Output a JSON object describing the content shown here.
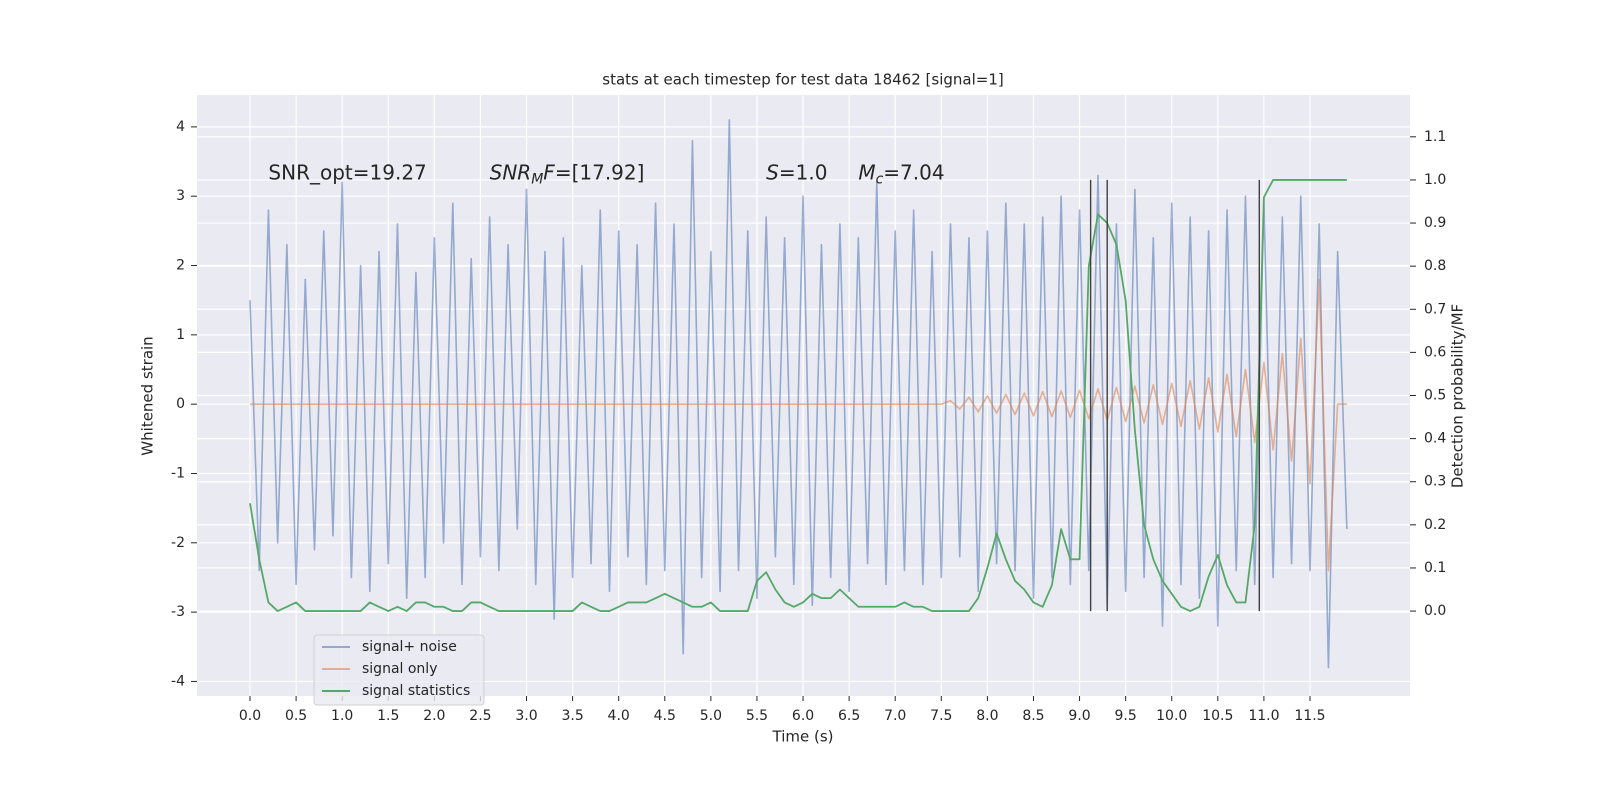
{
  "chart_data": {
    "type": "line",
    "title": "stats at each timestep for test data 18462 [signal=1]",
    "xlabel": "Time (s)",
    "ylabel": "Whitened strain",
    "y2label": "Detection probability/MF",
    "x": [
      0.0,
      0.1,
      0.2,
      0.3,
      0.4,
      0.5,
      0.6,
      0.7,
      0.8,
      0.9,
      1.0,
      1.1,
      1.2,
      1.3,
      1.4,
      1.5,
      1.6,
      1.7,
      1.8,
      1.9,
      2.0,
      2.1,
      2.2,
      2.3,
      2.4,
      2.5,
      2.6,
      2.7,
      2.8,
      2.9,
      3.0,
      3.1,
      3.2,
      3.3,
      3.4,
      3.5,
      3.6,
      3.7,
      3.8,
      3.9,
      4.0,
      4.1,
      4.2,
      4.3,
      4.4,
      4.5,
      4.6,
      4.7,
      4.8,
      4.9,
      5.0,
      5.1,
      5.2,
      5.3,
      5.4,
      5.5,
      5.6,
      5.7,
      5.8,
      5.9,
      6.0,
      6.1,
      6.2,
      6.3,
      6.4,
      6.5,
      6.6,
      6.7,
      6.8,
      6.9,
      7.0,
      7.1,
      7.2,
      7.3,
      7.4,
      7.5,
      7.6,
      7.7,
      7.8,
      7.9,
      8.0,
      8.1,
      8.2,
      8.3,
      8.4,
      8.5,
      8.6,
      8.7,
      8.8,
      8.9,
      9.0,
      9.1,
      9.2,
      9.3,
      9.4,
      9.5,
      9.6,
      9.7,
      9.8,
      9.9,
      10.0,
      10.1,
      10.2,
      10.3,
      10.4,
      10.5,
      10.6,
      10.7,
      10.8,
      10.9,
      11.0,
      11.1,
      11.2,
      11.3,
      11.4,
      11.5,
      11.6,
      11.7,
      11.8,
      11.9
    ],
    "series": [
      {
        "name": "signal+ noise",
        "color": "#4c72b0",
        "opacity": 0.55,
        "values": [
          1.5,
          -2.4,
          2.8,
          -2.0,
          2.3,
          -2.6,
          1.8,
          -2.1,
          2.5,
          -1.9,
          3.2,
          -2.5,
          2.0,
          -2.7,
          2.2,
          -2.3,
          2.6,
          -2.8,
          1.9,
          -2.5,
          2.4,
          -2.0,
          2.9,
          -2.6,
          2.1,
          -2.2,
          2.7,
          -2.4,
          2.3,
          -1.8,
          3.1,
          -2.6,
          2.2,
          -3.1,
          2.4,
          -2.5,
          2.0,
          -2.3,
          2.8,
          -2.7,
          2.5,
          -2.2,
          2.3,
          -2.6,
          2.9,
          -2.4,
          2.6,
          -3.6,
          3.8,
          -2.5,
          2.2,
          -2.7,
          4.1,
          -2.4,
          2.5,
          -2.8,
          2.7,
          -2.2,
          2.4,
          -2.6,
          3.0,
          -2.9,
          2.3,
          -2.5,
          2.6,
          -2.7,
          2.4,
          -2.3,
          3.2,
          -2.6,
          2.5,
          -2.4,
          2.8,
          -2.6,
          2.2,
          -2.5,
          2.6,
          -2.2,
          2.4,
          -2.7,
          2.5,
          -2.3,
          2.9,
          -2.4,
          2.6,
          -2.8,
          2.7,
          -2.5,
          3.0,
          -2.6,
          2.8,
          -2.4,
          3.3,
          -2.9,
          2.6,
          -2.7,
          3.1,
          -2.5,
          2.4,
          -3.2,
          2.9,
          -2.6,
          2.7,
          -2.8,
          2.5,
          -3.2,
          2.8,
          -2.4,
          3.0,
          -2.6,
          2.9,
          -2.5,
          2.7,
          -2.3,
          3.0,
          -2.4,
          2.6,
          -3.8,
          2.2,
          -1.8
        ]
      },
      {
        "name": "signal only",
        "color": "#dd8452",
        "opacity": 0.6,
        "values": [
          0,
          0,
          0,
          0,
          0,
          0,
          0,
          0,
          0,
          0,
          0,
          0,
          0,
          0,
          0,
          0,
          0,
          0,
          0,
          0,
          0,
          0,
          0,
          0,
          0,
          0,
          0,
          0,
          0,
          0,
          0,
          0,
          0,
          0,
          0,
          0,
          0,
          0,
          0,
          0,
          0,
          0,
          0,
          0,
          0,
          0,
          0,
          0,
          0,
          0,
          0,
          0,
          0,
          0,
          0,
          0,
          0,
          0,
          0,
          0,
          0,
          0,
          0,
          0,
          0,
          0,
          0,
          0,
          0,
          0,
          0,
          0,
          0,
          0,
          0,
          0,
          0.05,
          -0.07,
          0.1,
          -0.11,
          0.12,
          -0.13,
          0.14,
          -0.15,
          0.16,
          -0.17,
          0.18,
          -0.18,
          0.19,
          -0.19,
          0.2,
          -0.21,
          0.22,
          -0.23,
          0.24,
          -0.25,
          0.26,
          -0.27,
          0.28,
          -0.29,
          0.3,
          -0.32,
          0.34,
          -0.36,
          0.38,
          -0.4,
          0.43,
          -0.47,
          0.5,
          -0.55,
          0.6,
          -0.66,
          0.73,
          -0.82,
          0.95,
          -1.15,
          1.8,
          -2.4,
          0,
          0
        ]
      },
      {
        "name": "signal statistics",
        "color": "#55a868",
        "opacity": 1,
        "axis": "y2",
        "values": [
          0.25,
          0.12,
          0.02,
          0.0,
          0.01,
          0.02,
          0.0,
          0.0,
          0.0,
          0.0,
          0.0,
          0.0,
          0.0,
          0.02,
          0.01,
          0.0,
          0.01,
          0.0,
          0.02,
          0.02,
          0.01,
          0.01,
          0.0,
          0.0,
          0.02,
          0.02,
          0.01,
          0.0,
          0.0,
          0.0,
          0.0,
          0.0,
          0.0,
          0.0,
          0.0,
          0.0,
          0.02,
          0.01,
          0.0,
          0.0,
          0.01,
          0.02,
          0.02,
          0.02,
          0.03,
          0.04,
          0.03,
          0.02,
          0.01,
          0.01,
          0.02,
          0.0,
          0.0,
          0.0,
          0.0,
          0.07,
          0.09,
          0.05,
          0.02,
          0.01,
          0.02,
          0.04,
          0.03,
          0.03,
          0.05,
          0.03,
          0.01,
          0.01,
          0.01,
          0.01,
          0.01,
          0.02,
          0.01,
          0.01,
          0.0,
          0.0,
          0.0,
          0.0,
          0.0,
          0.03,
          0.1,
          0.18,
          0.12,
          0.07,
          0.05,
          0.02,
          0.01,
          0.06,
          0.19,
          0.12,
          0.12,
          0.8,
          0.92,
          0.9,
          0.85,
          0.72,
          0.42,
          0.2,
          0.12,
          0.07,
          0.04,
          0.01,
          0.0,
          0.01,
          0.08,
          0.13,
          0.06,
          0.02,
          0.02,
          0.2,
          0.96,
          1.0,
          1.0,
          1.0,
          1.0,
          1.0,
          1.0,
          1.0,
          1.0,
          1.0
        ]
      }
    ],
    "vlines": [
      9.12,
      9.3,
      10.95
    ],
    "vline_range": [
      0,
      1
    ],
    "vline_color": "#404040",
    "annotations": [
      {
        "x": 0.2,
        "y": 3.33,
        "parts": [
          {
            "text": "SNR_opt=19.27",
            "style": "normal"
          }
        ]
      },
      {
        "x": 2.6,
        "y": 3.33,
        "parts": [
          {
            "text": "SNR",
            "style": "italic"
          },
          {
            "text": "M",
            "style": "italic-sub"
          },
          {
            "text": "F",
            "style": "italic"
          },
          {
            "text": "=[17.92]",
            "style": "normal"
          }
        ]
      },
      {
        "x": 5.6,
        "y": 3.33,
        "parts": [
          {
            "text": "S",
            "style": "italic"
          },
          {
            "text": "=1.0",
            "style": "normal"
          }
        ]
      },
      {
        "x": 6.6,
        "y": 3.33,
        "parts": [
          {
            "text": "M",
            "style": "italic"
          },
          {
            "text": "c",
            "style": "italic-sub"
          },
          {
            "text": "=7.04",
            "style": "normal"
          }
        ]
      }
    ],
    "xlim": [
      -0.575,
      12.585
    ],
    "xticks": [
      {
        "value": 0,
        "label": "0.0"
      },
      0.5,
      {
        "value": 1,
        "label": "1.0"
      },
      1.5,
      {
        "value": 2,
        "label": "2.0"
      },
      2.5,
      {
        "value": 3,
        "label": "3.0"
      },
      3.5,
      {
        "value": 4,
        "label": "4.0"
      },
      4.5,
      {
        "value": 5,
        "label": "5.0"
      },
      5.5,
      {
        "value": 6,
        "label": "6.0"
      },
      6.5,
      {
        "value": 7,
        "label": "7.0"
      },
      7.5,
      {
        "value": 8,
        "label": "8.0"
      },
      8.5,
      {
        "value": 9,
        "label": "9.0"
      },
      9.5,
      {
        "value": 10,
        "label": "10.0"
      },
      10.5,
      {
        "value": 11,
        "label": "11.0"
      },
      11.5
    ],
    "ylim": [
      -4.21,
      4.46
    ],
    "yticks": [
      -4,
      -3,
      -2,
      -1,
      0,
      1,
      2,
      3,
      4
    ],
    "y2lim": [
      -0.197,
      1.197
    ],
    "y2ticks": [
      {
        "value": 0,
        "label": "0.0"
      },
      0.1,
      0.2,
      0.3,
      0.4,
      0.5,
      0.6,
      0.7,
      0.8,
      0.9,
      {
        "value": 1,
        "label": "1.0"
      },
      1.1
    ],
    "grid": true,
    "legend": "lower left"
  }
}
